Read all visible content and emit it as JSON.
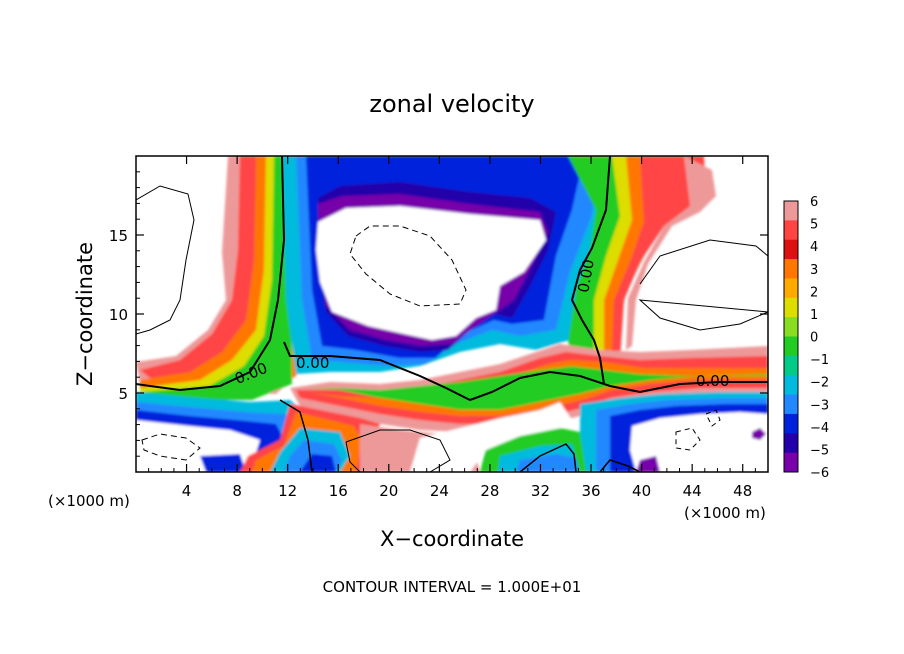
{
  "chart_data": {
    "type": "heatmap",
    "title": "zonal velocity",
    "xlabel": "X−coordinate",
    "ylabel": "Z−coordinate",
    "x_unit_label": "(×1000 m)",
    "y_unit_label": "(×1000 m)",
    "footer": "CONTOUR INTERVAL = 1.000E+01",
    "xlim": [
      0,
      50
    ],
    "ylim": [
      0,
      20
    ],
    "x_ticks": [
      "4",
      "8",
      "12",
      "16",
      "20",
      "24",
      "28",
      "32",
      "36",
      "40",
      "44",
      "48"
    ],
    "y_ticks": [
      "5",
      "10",
      "15"
    ],
    "contour_labels": [
      "0.00",
      "0.00",
      "0.00",
      "0.00"
    ],
    "colorbar": {
      "ticks": [
        "6",
        "5",
        "4",
        "3",
        "2",
        "1",
        "0",
        "−1",
        "−2",
        "−3",
        "−4",
        "−5",
        "−6"
      ],
      "range": [
        -6,
        6
      ],
      "colors": [
        "#ee9999",
        "#ff4444",
        "#dd1111",
        "#ff7700",
        "#ffaa00",
        "#dddd00",
        "#88dd22",
        "#22cc22",
        "#00cc88",
        "#00bbdd",
        "#2288ff",
        "#0022dd",
        "#2200aa",
        "#7700aa"
      ]
    }
  }
}
